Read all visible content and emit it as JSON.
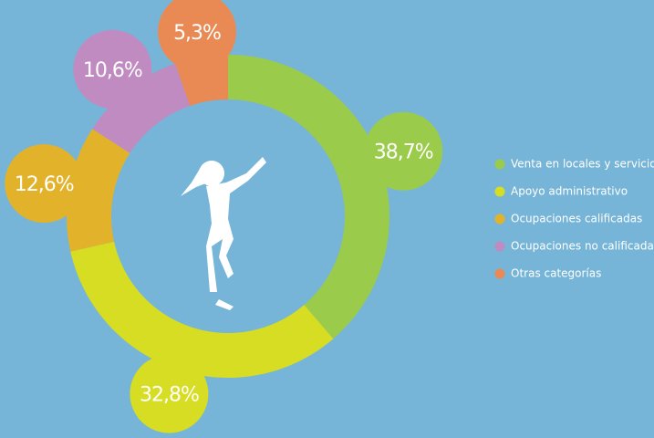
{
  "chart_data": {
    "type": "pie",
    "categories": [
      "Venta en locales y servicios",
      "Apoyo administrativo",
      "Ocupaciones calificadas",
      "Ocupaciones no calificadas",
      "Otras categorías"
    ],
    "values": [
      38.7,
      32.8,
      12.6,
      10.6,
      5.3
    ],
    "value_labels": [
      "38,7%",
      "32,8%",
      "12,6%",
      "10,6%",
      "5,3%"
    ],
    "colors": [
      "#9bcb4a",
      "#d6dd22",
      "#e2b22a",
      "#c08bc0",
      "#e98a55"
    ],
    "donut": true
  }
}
